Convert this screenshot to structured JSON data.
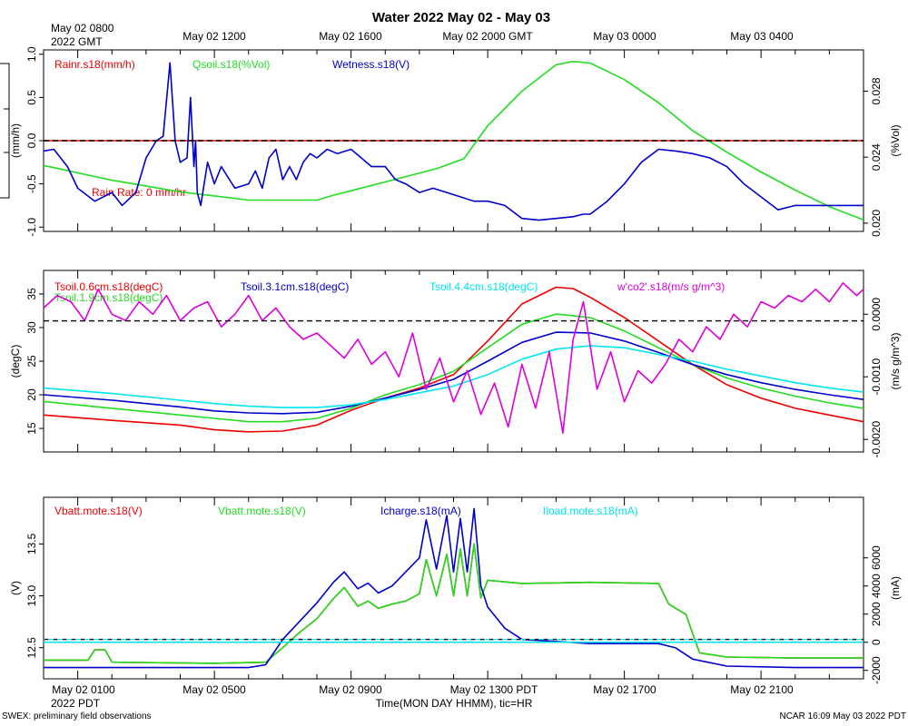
{
  "title": "Water 2022 May 02 - May 03",
  "top_axis": {
    "corner_label_line1": "May 02 0800",
    "corner_label_line2": "2022 GMT",
    "tick_labels": [
      "May 02 1200",
      "May 02 1600",
      "May 02 2000 GMT",
      "May 03 0000",
      "May 03 0400"
    ]
  },
  "bottom_axis": {
    "corner_label": "2022 PDT",
    "tick_labels": [
      "May 02 0100",
      "May 02 0500",
      "May 02 0900",
      "May 02 1300 PDT",
      "May 02 1700",
      "May 02 2100"
    ],
    "xlabel": "Time(MON DAY HHMM), tic=HR"
  },
  "footer_left": "SWEX: preliminary field observations",
  "footer_right": "NCAR 16:09 May 03 2022 PDT",
  "colors": {
    "red": "#ee0000",
    "green": "#22dd22",
    "blue": "#0000cc",
    "cyan": "#00e5ee",
    "magenta": "#dd00dd",
    "black": "#000000"
  },
  "chart_data": [
    {
      "type": "line",
      "name": "panel-1",
      "x_unit": "hours since May 02 0000 PDT",
      "xlim": [
        0,
        24
      ],
      "left_axis": {
        "label": "(mm/h)",
        "ylim": [
          -1.05,
          1.05
        ],
        "ticks": [
          -1.0,
          -0.5,
          0.0,
          0.5,
          1.0
        ],
        "tick_labels": [
          "-1.0",
          "-0.5",
          "0.0",
          "0.5",
          "1.0"
        ]
      },
      "right_axis": {
        "label": "(%Vol)",
        "ylim": [
          0.0195,
          0.0305
        ],
        "ticks": [
          0.02,
          0.024,
          0.028
        ],
        "tick_labels": [
          "0.020",
          "0.024",
          "0.028"
        ]
      },
      "reference_line": 0.0,
      "annotation": "Rain Rate: 0 mm/hr",
      "series": [
        {
          "name": "Rainr.s18(mm/h)",
          "color": "red",
          "axis": "left",
          "x": [
            0,
            24
          ],
          "y": [
            0.0,
            0.0
          ]
        },
        {
          "name": "Qsoil.s18(%Vol)",
          "color": "green",
          "axis": "right",
          "x": [
            0,
            2,
            4,
            6,
            8,
            8.5,
            10,
            11.5,
            12.3,
            13,
            14,
            15,
            15.5,
            16,
            17,
            18,
            19,
            20,
            21,
            22,
            23,
            24
          ],
          "y": [
            0.0235,
            0.0226,
            0.0219,
            0.0214,
            0.0214,
            0.0217,
            0.0225,
            0.0233,
            0.0239,
            0.0259,
            0.028,
            0.0296,
            0.0298,
            0.0297,
            0.0287,
            0.0273,
            0.0256,
            0.0243,
            0.0231,
            0.022,
            0.021,
            0.0202
          ]
        },
        {
          "name": "Wetness.s18(V)",
          "color": "blue",
          "axis": "left",
          "x": [
            0,
            0.3,
            0.7,
            1.0,
            1.5,
            2.0,
            2.3,
            2.7,
            3.0,
            3.3,
            3.5,
            3.7,
            3.75,
            3.85,
            4.0,
            4.2,
            4.3,
            4.4,
            4.45,
            4.5,
            4.6,
            4.8,
            5.0,
            5.2,
            5.6,
            6.0,
            6.2,
            6.4,
            6.6,
            6.8,
            7.0,
            7.2,
            7.4,
            7.6,
            7.8,
            8.0,
            8.3,
            8.6,
            9.0,
            9.3,
            9.6,
            10.0,
            10.3,
            10.6,
            11.0,
            11.4,
            11.8,
            12.2,
            12.6,
            13.0,
            13.5,
            14.0,
            14.5,
            15.0,
            15.5,
            15.8,
            16.0,
            16.5,
            17.0,
            17.5,
            18.0,
            18.5,
            19.0,
            19.5,
            20.0,
            20.5,
            21.0,
            21.5,
            22.0,
            22.5,
            23.0,
            23.5,
            23.8,
            24.0
          ],
          "y": [
            -0.12,
            -0.1,
            -0.3,
            -0.55,
            -0.7,
            -0.6,
            -0.75,
            -0.6,
            -0.2,
            0.0,
            0.05,
            0.9,
            0.6,
            0.0,
            -0.25,
            -0.2,
            0.5,
            -0.3,
            0.0,
            -0.6,
            -0.75,
            -0.25,
            -0.5,
            -0.3,
            -0.55,
            -0.5,
            -0.35,
            -0.55,
            -0.2,
            -0.1,
            -0.45,
            -0.3,
            -0.45,
            -0.25,
            -0.15,
            -0.2,
            -0.1,
            -0.15,
            -0.1,
            -0.2,
            -0.3,
            -0.3,
            -0.45,
            -0.5,
            -0.6,
            -0.55,
            -0.6,
            -0.65,
            -0.7,
            -0.7,
            -0.75,
            -0.9,
            -0.92,
            -0.9,
            -0.88,
            -0.85,
            -0.85,
            -0.7,
            -0.5,
            -0.25,
            -0.1,
            -0.12,
            -0.15,
            -0.2,
            -0.3,
            -0.5,
            -0.65,
            -0.8,
            -0.75,
            -0.75,
            -0.75,
            -0.75,
            -0.75,
            -0.75
          ]
        }
      ]
    },
    {
      "type": "line",
      "name": "panel-2",
      "x_unit": "hours since May 02 0000 PDT",
      "xlim": [
        0,
        24
      ],
      "left_axis": {
        "label": "(degC)",
        "ylim": [
          11.5,
          38.5
        ],
        "ticks": [
          15,
          20,
          25,
          30,
          35
        ],
        "tick_labels": [
          "15",
          "20",
          "25",
          "30",
          "35"
        ]
      },
      "right_axis": {
        "label": "(m/s g/m^3)",
        "ylim": [
          -0.0022,
          0.0007
        ],
        "ticks": [
          -0.002,
          -0.001,
          0.0
        ],
        "tick_labels": [
          "-0.0020",
          "-0.0010",
          "0.0000"
        ]
      },
      "reference_line": 31.0,
      "series": [
        {
          "name": "Tsoil.0.6cm.s18(degC)",
          "color": "red",
          "axis": "left",
          "x": [
            0,
            2,
            4,
            5,
            6,
            7,
            8,
            9,
            10,
            11,
            12,
            13,
            14,
            15,
            15.5,
            16,
            17,
            18,
            19,
            20,
            21,
            22,
            23,
            24
          ],
          "y": [
            17.0,
            16.2,
            15.5,
            14.8,
            14.5,
            14.6,
            15.5,
            17.7,
            19.5,
            21.0,
            23.0,
            28.0,
            33.5,
            36.0,
            35.8,
            34.5,
            31.5,
            28.0,
            24.5,
            21.5,
            19.5,
            18.0,
            17.0,
            16.0
          ]
        },
        {
          "name": "Tsoil.1.9cm.s18(degC)",
          "color": "green",
          "axis": "left",
          "x": [
            0,
            2,
            4,
            5,
            6,
            7,
            8,
            9,
            10,
            11,
            12,
            13,
            14,
            15,
            16,
            17,
            18,
            19,
            20,
            21,
            22,
            23,
            24
          ],
          "y": [
            19.0,
            18.0,
            17.0,
            16.5,
            16.0,
            16.0,
            16.5,
            18.0,
            20.0,
            21.5,
            23.5,
            27.0,
            30.5,
            32.0,
            31.5,
            29.5,
            27.0,
            24.5,
            22.5,
            21.0,
            19.8,
            18.8,
            18.0
          ]
        },
        {
          "name": "Tsoil.3.1cm.s18(degC)",
          "color": "blue",
          "axis": "left",
          "x": [
            0,
            2,
            4,
            5,
            6,
            7,
            8,
            9,
            10,
            11,
            12,
            13,
            14,
            15,
            16,
            17,
            18,
            19,
            20,
            21,
            22,
            23,
            24
          ],
          "y": [
            20.0,
            19.2,
            18.2,
            17.6,
            17.3,
            17.2,
            17.4,
            18.3,
            19.5,
            20.8,
            22.3,
            25.0,
            27.8,
            29.3,
            29.2,
            28.0,
            26.3,
            24.5,
            23.0,
            21.8,
            20.8,
            20.0,
            19.3
          ]
        },
        {
          "name": "Tsoil.4.4cm.s18(degC)",
          "color": "cyan",
          "axis": "left",
          "x": [
            0,
            2,
            4,
            5,
            6,
            7,
            8,
            9,
            10,
            11,
            12,
            13,
            14,
            15,
            16,
            17,
            18,
            19,
            20,
            21,
            22,
            23,
            24
          ],
          "y": [
            21.0,
            20.2,
            19.2,
            18.7,
            18.3,
            18.1,
            18.1,
            18.5,
            19.3,
            20.3,
            21.3,
            23.0,
            25.3,
            26.8,
            27.3,
            27.0,
            26.0,
            25.0,
            23.8,
            22.8,
            21.8,
            21.0,
            20.4
          ]
        },
        {
          "name": "w'co2'.s18(m/s g/m^3)",
          "color": "magenta",
          "axis": "right",
          "x": [
            0,
            0.4,
            0.8,
            1.2,
            1.6,
            2.0,
            2.4,
            2.8,
            3.2,
            3.6,
            4.0,
            4.4,
            4.8,
            5.2,
            5.6,
            6.0,
            6.4,
            6.8,
            7.2,
            7.6,
            8.0,
            8.4,
            8.8,
            9.2,
            9.6,
            10.0,
            10.4,
            10.8,
            11.2,
            11.6,
            12.0,
            12.4,
            12.8,
            13.2,
            13.6,
            14.0,
            14.4,
            14.8,
            15.2,
            15.5,
            15.8,
            16.2,
            16.6,
            17.0,
            17.4,
            17.8,
            18.2,
            18.6,
            19.0,
            19.4,
            19.8,
            20.2,
            20.6,
            21.0,
            21.4,
            21.8,
            22.2,
            22.6,
            23.0,
            23.4,
            23.8,
            24.0
          ],
          "y": [
            0.0001,
            0.0003,
            0.0002,
            -0.0001,
            0.0004,
            0.0,
            -0.0001,
            0.0002,
            0.0,
            0.0003,
            -0.0001,
            0.0001,
            0.0002,
            -0.0002,
            0.0,
            0.0003,
            -0.0001,
            0.0001,
            -0.0002,
            -0.0004,
            -0.0003,
            -0.0005,
            -0.0007,
            -0.0004,
            -0.0008,
            -0.0006,
            -0.001,
            -0.0003,
            -0.0012,
            -0.0007,
            -0.0014,
            -0.0009,
            -0.0016,
            -0.0011,
            -0.0018,
            -0.0008,
            -0.0015,
            -0.0006,
            -0.0019,
            -0.0004,
            0.0002,
            -0.0012,
            -0.0006,
            -0.0014,
            -0.0009,
            -0.0011,
            -0.0008,
            -0.0004,
            -0.0006,
            -0.0002,
            -0.0004,
            0.0,
            -0.0002,
            0.0002,
            0.0001,
            0.0003,
            0.0002,
            0.0004,
            0.0002,
            0.0005,
            0.0003,
            0.0004
          ]
        }
      ]
    },
    {
      "type": "line",
      "name": "panel-3",
      "x_unit": "hours since May 02 0000 PDT",
      "xlim": [
        0,
        24
      ],
      "left_axis": {
        "label": "(V)",
        "ylim": [
          12.2,
          13.95
        ],
        "ticks": [
          12.5,
          13.0,
          13.5
        ],
        "tick_labels": [
          "12.5",
          "13.0",
          "13.5"
        ]
      },
      "right_axis": {
        "label": "(mA)",
        "ylim": [
          -2600,
          10300
        ],
        "ticks": [
          -2000,
          0,
          2000,
          4000,
          6000
        ],
        "tick_labels": [
          "-2000",
          "0",
          "2000",
          "4000",
          "6000"
        ]
      },
      "reference_line": 12.58,
      "series": [
        {
          "name": "Vbatt.mote.s18(V)",
          "color": "red",
          "axis": "left",
          "x": [
            0,
            1.3,
            1.5,
            1.8,
            2.0,
            5.0,
            6.5,
            7.0,
            7.5,
            8.0,
            8.5,
            8.8,
            9.2,
            9.5,
            9.8,
            10.2,
            10.6,
            11.0,
            11.2,
            11.5,
            11.8,
            12.0,
            12.2,
            12.4,
            12.6,
            12.8,
            13.0,
            14.0,
            16.0,
            18.0,
            18.3,
            18.8,
            19.2,
            20.0,
            22.0,
            24.0
          ],
          "y": [
            12.38,
            12.38,
            12.48,
            12.48,
            12.36,
            12.35,
            12.36,
            12.5,
            12.65,
            12.78,
            12.98,
            13.08,
            12.9,
            12.95,
            12.88,
            12.92,
            12.95,
            13.02,
            13.35,
            13.0,
            13.4,
            13.0,
            13.45,
            13.0,
            13.5,
            12.98,
            13.15,
            13.12,
            13.13,
            13.12,
            12.92,
            12.82,
            12.45,
            12.41,
            12.4,
            12.4
          ]
        },
        {
          "name": "Vbatt.mote.s18(V)",
          "color": "green",
          "axis": "left",
          "x": [
            0,
            1.3,
            1.5,
            1.8,
            2.0,
            5.0,
            6.5,
            7.0,
            7.5,
            8.0,
            8.5,
            8.8,
            9.2,
            9.5,
            9.8,
            10.2,
            10.6,
            11.0,
            11.2,
            11.5,
            11.8,
            12.0,
            12.2,
            12.4,
            12.6,
            12.8,
            13.0,
            14.0,
            16.0,
            18.0,
            18.3,
            18.8,
            19.2,
            20.0,
            22.0,
            24.0
          ],
          "y": [
            12.38,
            12.38,
            12.48,
            12.48,
            12.36,
            12.35,
            12.36,
            12.5,
            12.65,
            12.78,
            12.98,
            13.08,
            12.9,
            12.95,
            12.88,
            12.92,
            12.95,
            13.02,
            13.35,
            13.0,
            13.4,
            13.0,
            13.45,
            13.0,
            13.5,
            12.98,
            13.15,
            13.12,
            13.13,
            13.12,
            12.92,
            12.82,
            12.45,
            12.41,
            12.4,
            12.4
          ]
        },
        {
          "name": "Icharge.s18(mA)",
          "color": "blue",
          "axis": "right",
          "x": [
            0,
            6.0,
            6.5,
            7.0,
            7.5,
            8.0,
            8.5,
            8.8,
            9.2,
            9.5,
            9.8,
            10.2,
            10.6,
            11.0,
            11.2,
            11.5,
            11.8,
            12.0,
            12.2,
            12.4,
            12.6,
            12.8,
            13.0,
            13.5,
            14.0,
            16.0,
            18.0,
            18.5,
            19.0,
            20.0,
            22.0,
            24.0
          ],
          "y": [
            -1800,
            -1800,
            -1600,
            200,
            1500,
            2800,
            4300,
            5000,
            3800,
            4200,
            3500,
            4000,
            5000,
            6000,
            8700,
            5200,
            9000,
            5000,
            8800,
            5000,
            9500,
            4000,
            2500,
            1000,
            200,
            -100,
            -100,
            -400,
            -1200,
            -1700,
            -1800,
            -1800
          ]
        },
        {
          "name": "Iload.mote.s18(mA)",
          "color": "cyan",
          "axis": "right",
          "x": [
            0,
            24
          ],
          "y": [
            0,
            0
          ]
        }
      ]
    }
  ]
}
